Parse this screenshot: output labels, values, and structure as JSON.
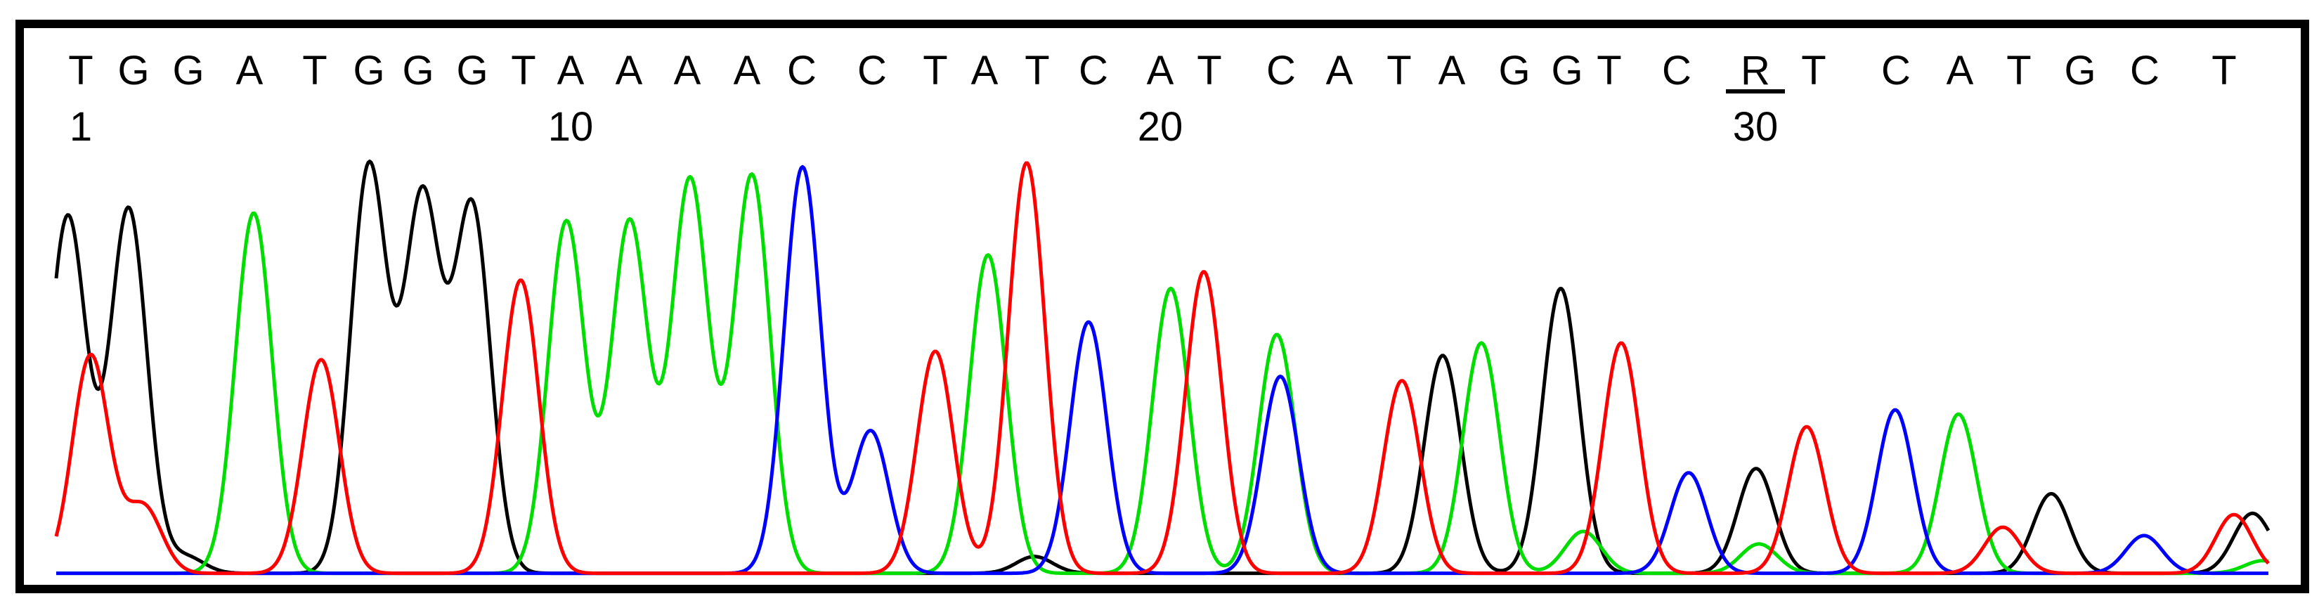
{
  "chart_data": {
    "type": "line",
    "title": "",
    "xlabel": "",
    "ylabel": "",
    "sequence": [
      "T",
      "G",
      "G",
      "A",
      "T",
      "G",
      "G",
      "G",
      "T",
      "A",
      "A",
      "A",
      "A",
      "C",
      "C",
      "T",
      "A",
      "T",
      "C",
      "A",
      "T",
      "C",
      "A",
      "T",
      "A",
      "G",
      "G",
      "T",
      "C",
      "R",
      "T",
      "C",
      "A",
      "T",
      "G",
      "C",
      "T"
    ],
    "base_x": [
      115,
      190,
      268,
      355,
      448,
      525,
      595,
      672,
      745,
      812,
      895,
      978,
      1063,
      1141,
      1241,
      1331,
      1401,
      1476,
      1556,
      1651,
      1721,
      1823,
      1906,
      1991,
      2066,
      2155,
      2230,
      2290,
      2386,
      2498,
      2581,
      2698,
      2789,
      2873,
      2960,
      3052,
      3165
    ],
    "highlight_index": 29,
    "position_labels": [
      {
        "text": "1",
        "position": 1
      },
      {
        "text": "10",
        "position": 10
      },
      {
        "text": "20",
        "position": 20
      },
      {
        "text": "30",
        "position": 30
      }
    ],
    "series": [
      {
        "color": "#000000",
        "x": [
          80,
          98,
          183,
          264,
          525,
          601,
          672,
          1472,
          2053,
          2221,
          2499,
          2919,
          3203,
          3228
        ],
        "y": [
          0.09,
          0.78,
          0.87,
          0.04,
          0.97,
          0.89,
          0.87,
          0.04,
          0.52,
          0.68,
          0.25,
          0.19,
          0.13,
          0.02
        ]
      },
      {
        "color": "#00dd00",
        "x": [
          361,
          806,
          896,
          982,
          1070,
          1406,
          1666,
          1817,
          2108,
          2253,
          2503,
          2787,
          3220
        ],
        "y": [
          0.86,
          0.84,
          0.84,
          0.94,
          0.95,
          0.76,
          0.68,
          0.57,
          0.55,
          0.1,
          0.07,
          0.38,
          0.03
        ]
      },
      {
        "color": "#0000ff",
        "x": [
          1142,
          1239,
          1549,
          1822,
          2403,
          2697,
          3051
        ],
        "y": [
          0.97,
          0.34,
          0.6,
          0.47,
          0.24,
          0.39,
          0.09
        ]
      },
      {
        "color": "#ff0000",
        "x": [
          129,
          204,
          457,
          741,
          1331,
          1461,
          1713,
          1995,
          2307,
          2571,
          2850,
          3179
        ],
        "y": [
          0.52,
          0.16,
          0.51,
          0.7,
          0.53,
          0.98,
          0.72,
          0.46,
          0.55,
          0.35,
          0.11,
          0.14
        ]
      }
    ]
  }
}
